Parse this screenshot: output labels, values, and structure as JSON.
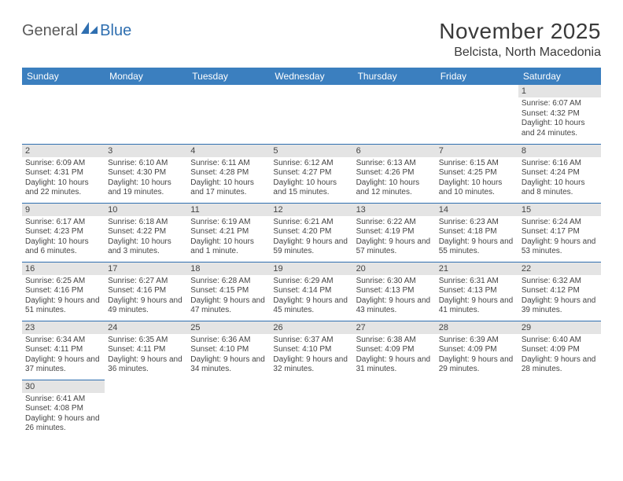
{
  "logo": {
    "part1": "General",
    "part2": "Blue"
  },
  "title": "November 2025",
  "location": "Belcista, North Macedonia",
  "colors": {
    "header_bg": "#3b7fbf",
    "header_text": "#ffffff",
    "border": "#2f6fb0",
    "daynum_bg": "#e4e4e4",
    "text": "#444444"
  },
  "typography": {
    "title_fontsize": 28,
    "location_fontsize": 16,
    "header_fontsize": 12,
    "daynum_fontsize": 11,
    "body_fontsize": 10
  },
  "day_headers": [
    "Sunday",
    "Monday",
    "Tuesday",
    "Wednesday",
    "Thursday",
    "Friday",
    "Saturday"
  ],
  "weeks": [
    [
      null,
      null,
      null,
      null,
      null,
      null,
      {
        "n": "1",
        "sunrise": "Sunrise: 6:07 AM",
        "sunset": "Sunset: 4:32 PM",
        "daylight": "Daylight: 10 hours and 24 minutes."
      }
    ],
    [
      {
        "n": "2",
        "sunrise": "Sunrise: 6:09 AM",
        "sunset": "Sunset: 4:31 PM",
        "daylight": "Daylight: 10 hours and 22 minutes."
      },
      {
        "n": "3",
        "sunrise": "Sunrise: 6:10 AM",
        "sunset": "Sunset: 4:30 PM",
        "daylight": "Daylight: 10 hours and 19 minutes."
      },
      {
        "n": "4",
        "sunrise": "Sunrise: 6:11 AM",
        "sunset": "Sunset: 4:28 PM",
        "daylight": "Daylight: 10 hours and 17 minutes."
      },
      {
        "n": "5",
        "sunrise": "Sunrise: 6:12 AM",
        "sunset": "Sunset: 4:27 PM",
        "daylight": "Daylight: 10 hours and 15 minutes."
      },
      {
        "n": "6",
        "sunrise": "Sunrise: 6:13 AM",
        "sunset": "Sunset: 4:26 PM",
        "daylight": "Daylight: 10 hours and 12 minutes."
      },
      {
        "n": "7",
        "sunrise": "Sunrise: 6:15 AM",
        "sunset": "Sunset: 4:25 PM",
        "daylight": "Daylight: 10 hours and 10 minutes."
      },
      {
        "n": "8",
        "sunrise": "Sunrise: 6:16 AM",
        "sunset": "Sunset: 4:24 PM",
        "daylight": "Daylight: 10 hours and 8 minutes."
      }
    ],
    [
      {
        "n": "9",
        "sunrise": "Sunrise: 6:17 AM",
        "sunset": "Sunset: 4:23 PM",
        "daylight": "Daylight: 10 hours and 6 minutes."
      },
      {
        "n": "10",
        "sunrise": "Sunrise: 6:18 AM",
        "sunset": "Sunset: 4:22 PM",
        "daylight": "Daylight: 10 hours and 3 minutes."
      },
      {
        "n": "11",
        "sunrise": "Sunrise: 6:19 AM",
        "sunset": "Sunset: 4:21 PM",
        "daylight": "Daylight: 10 hours and 1 minute."
      },
      {
        "n": "12",
        "sunrise": "Sunrise: 6:21 AM",
        "sunset": "Sunset: 4:20 PM",
        "daylight": "Daylight: 9 hours and 59 minutes."
      },
      {
        "n": "13",
        "sunrise": "Sunrise: 6:22 AM",
        "sunset": "Sunset: 4:19 PM",
        "daylight": "Daylight: 9 hours and 57 minutes."
      },
      {
        "n": "14",
        "sunrise": "Sunrise: 6:23 AM",
        "sunset": "Sunset: 4:18 PM",
        "daylight": "Daylight: 9 hours and 55 minutes."
      },
      {
        "n": "15",
        "sunrise": "Sunrise: 6:24 AM",
        "sunset": "Sunset: 4:17 PM",
        "daylight": "Daylight: 9 hours and 53 minutes."
      }
    ],
    [
      {
        "n": "16",
        "sunrise": "Sunrise: 6:25 AM",
        "sunset": "Sunset: 4:16 PM",
        "daylight": "Daylight: 9 hours and 51 minutes."
      },
      {
        "n": "17",
        "sunrise": "Sunrise: 6:27 AM",
        "sunset": "Sunset: 4:16 PM",
        "daylight": "Daylight: 9 hours and 49 minutes."
      },
      {
        "n": "18",
        "sunrise": "Sunrise: 6:28 AM",
        "sunset": "Sunset: 4:15 PM",
        "daylight": "Daylight: 9 hours and 47 minutes."
      },
      {
        "n": "19",
        "sunrise": "Sunrise: 6:29 AM",
        "sunset": "Sunset: 4:14 PM",
        "daylight": "Daylight: 9 hours and 45 minutes."
      },
      {
        "n": "20",
        "sunrise": "Sunrise: 6:30 AM",
        "sunset": "Sunset: 4:13 PM",
        "daylight": "Daylight: 9 hours and 43 minutes."
      },
      {
        "n": "21",
        "sunrise": "Sunrise: 6:31 AM",
        "sunset": "Sunset: 4:13 PM",
        "daylight": "Daylight: 9 hours and 41 minutes."
      },
      {
        "n": "22",
        "sunrise": "Sunrise: 6:32 AM",
        "sunset": "Sunset: 4:12 PM",
        "daylight": "Daylight: 9 hours and 39 minutes."
      }
    ],
    [
      {
        "n": "23",
        "sunrise": "Sunrise: 6:34 AM",
        "sunset": "Sunset: 4:11 PM",
        "daylight": "Daylight: 9 hours and 37 minutes."
      },
      {
        "n": "24",
        "sunrise": "Sunrise: 6:35 AM",
        "sunset": "Sunset: 4:11 PM",
        "daylight": "Daylight: 9 hours and 36 minutes."
      },
      {
        "n": "25",
        "sunrise": "Sunrise: 6:36 AM",
        "sunset": "Sunset: 4:10 PM",
        "daylight": "Daylight: 9 hours and 34 minutes."
      },
      {
        "n": "26",
        "sunrise": "Sunrise: 6:37 AM",
        "sunset": "Sunset: 4:10 PM",
        "daylight": "Daylight: 9 hours and 32 minutes."
      },
      {
        "n": "27",
        "sunrise": "Sunrise: 6:38 AM",
        "sunset": "Sunset: 4:09 PM",
        "daylight": "Daylight: 9 hours and 31 minutes."
      },
      {
        "n": "28",
        "sunrise": "Sunrise: 6:39 AM",
        "sunset": "Sunset: 4:09 PM",
        "daylight": "Daylight: 9 hours and 29 minutes."
      },
      {
        "n": "29",
        "sunrise": "Sunrise: 6:40 AM",
        "sunset": "Sunset: 4:09 PM",
        "daylight": "Daylight: 9 hours and 28 minutes."
      }
    ],
    [
      {
        "n": "30",
        "sunrise": "Sunrise: 6:41 AM",
        "sunset": "Sunset: 4:08 PM",
        "daylight": "Daylight: 9 hours and 26 minutes."
      },
      null,
      null,
      null,
      null,
      null,
      null
    ]
  ]
}
